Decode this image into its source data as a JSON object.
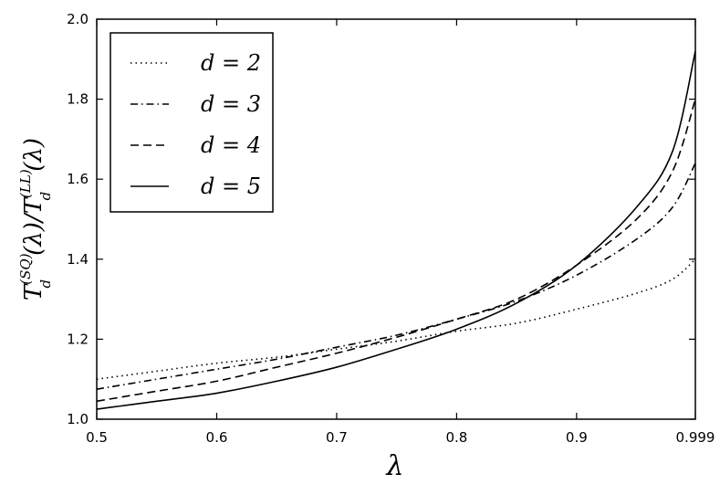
{
  "chart_data": {
    "type": "line",
    "xlabel": "λ",
    "ylabel": {
      "base": "T",
      "sub": "d",
      "sup_num": "(SQ)",
      "mid": "(λ)/",
      "sup_den": "(LL)",
      "end": "(λ)"
    },
    "xlim": [
      0.5,
      0.999
    ],
    "ylim": [
      1.0,
      2.0
    ],
    "x_ticks": [
      0.5,
      0.6,
      0.7,
      0.8,
      0.9,
      0.999
    ],
    "x_tick_labels": [
      "0.5",
      "0.6",
      "0.7",
      "0.8",
      "0.9",
      "0.999"
    ],
    "y_ticks": [
      1.0,
      1.2,
      1.4,
      1.6,
      1.8,
      2.0
    ],
    "y_tick_labels": [
      "1.0",
      "1.2",
      "1.4",
      "1.6",
      "1.8",
      "2.0"
    ],
    "grid": false,
    "legend_position": "top-left",
    "series": [
      {
        "name": "d = 2",
        "style": "dotted",
        "x": [
          0.5,
          0.55,
          0.6,
          0.65,
          0.7,
          0.75,
          0.8,
          0.85,
          0.9,
          0.95,
          0.98,
          0.999
        ],
        "y": [
          1.1,
          1.12,
          1.14,
          1.155,
          1.175,
          1.195,
          1.22,
          1.24,
          1.275,
          1.315,
          1.35,
          1.4
        ]
      },
      {
        "name": "d = 3",
        "style": "dashdot",
        "x": [
          0.5,
          0.55,
          0.6,
          0.65,
          0.7,
          0.75,
          0.8,
          0.85,
          0.9,
          0.95,
          0.98,
          0.999
        ],
        "y": [
          1.075,
          1.1,
          1.125,
          1.15,
          1.18,
          1.21,
          1.25,
          1.295,
          1.36,
          1.45,
          1.53,
          1.64
        ]
      },
      {
        "name": "d = 4",
        "style": "dashed",
        "x": [
          0.5,
          0.55,
          0.6,
          0.65,
          0.7,
          0.75,
          0.8,
          0.85,
          0.9,
          0.95,
          0.98,
          0.999
        ],
        "y": [
          1.045,
          1.07,
          1.095,
          1.13,
          1.165,
          1.205,
          1.25,
          1.3,
          1.385,
          1.5,
          1.62,
          1.8
        ]
      },
      {
        "name": "d = 5",
        "style": "solid",
        "x": [
          0.5,
          0.55,
          0.6,
          0.65,
          0.7,
          0.75,
          0.8,
          0.85,
          0.9,
          0.95,
          0.98,
          0.999
        ],
        "y": [
          1.025,
          1.045,
          1.065,
          1.095,
          1.13,
          1.175,
          1.225,
          1.29,
          1.385,
          1.53,
          1.67,
          1.92
        ]
      }
    ]
  }
}
